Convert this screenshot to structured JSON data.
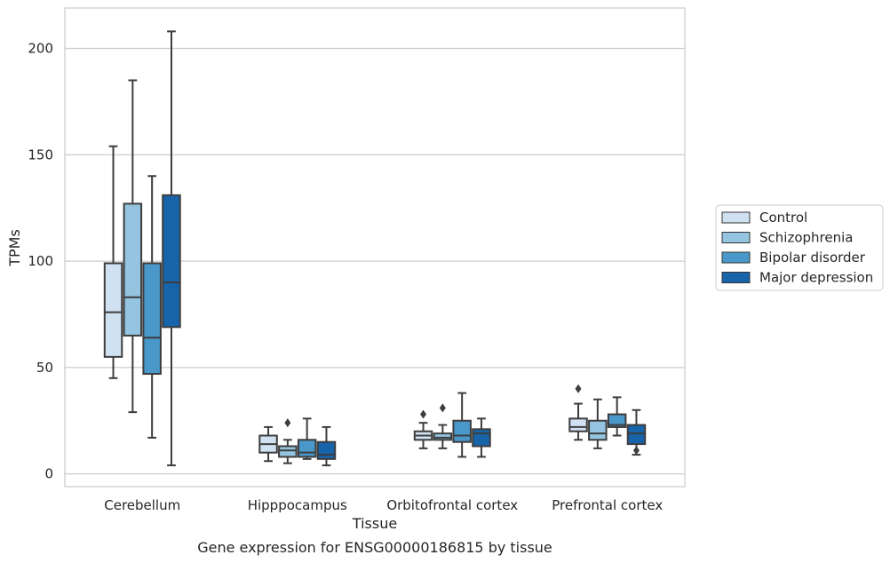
{
  "chart_data": {
    "type": "box",
    "caption": "Gene expression for ENSG00000186815 by tissue",
    "xlabel": "Tissue",
    "ylabel": "TPMs",
    "ylim": [
      -6,
      219
    ],
    "yticks": [
      0,
      50,
      100,
      150,
      200
    ],
    "grid": true,
    "legend_position": "right",
    "categories": [
      "Cerebellum",
      "Hipppocampus",
      "Orbitofrontal cortex",
      "Prefrontal cortex"
    ],
    "series": [
      {
        "name": "Control",
        "color": "#d0e1f2",
        "boxes": [
          {
            "whisker_low": 45,
            "q1": 55,
            "median": 76,
            "q3": 99,
            "whisker_high": 154,
            "outliers": []
          },
          {
            "whisker_low": 6,
            "q1": 10,
            "median": 14,
            "q3": 18,
            "whisker_high": 22,
            "outliers": []
          },
          {
            "whisker_low": 12,
            "q1": 16,
            "median": 18,
            "q3": 20,
            "whisker_high": 24,
            "outliers": [
              28
            ]
          },
          {
            "whisker_low": 16,
            "q1": 20,
            "median": 22,
            "q3": 26,
            "whisker_high": 33,
            "outliers": [
              40
            ]
          }
        ]
      },
      {
        "name": "Schizophrenia",
        "color": "#94c4df",
        "boxes": [
          {
            "whisker_low": 29,
            "q1": 65,
            "median": 83,
            "q3": 127,
            "whisker_high": 185,
            "outliers": []
          },
          {
            "whisker_low": 5,
            "q1": 8,
            "median": 11,
            "q3": 13,
            "whisker_high": 16,
            "outliers": [
              24
            ]
          },
          {
            "whisker_low": 12,
            "q1": 16,
            "median": 17,
            "q3": 19,
            "whisker_high": 23,
            "outliers": [
              31
            ]
          },
          {
            "whisker_low": 12,
            "q1": 16,
            "median": 19,
            "q3": 25,
            "whisker_high": 35,
            "outliers": []
          }
        ]
      },
      {
        "name": "Bipolar disorder",
        "color": "#4a98c9",
        "boxes": [
          {
            "whisker_low": 17,
            "q1": 47,
            "median": 64,
            "q3": 99,
            "whisker_high": 140,
            "outliers": []
          },
          {
            "whisker_low": 7,
            "q1": 8,
            "median": 10,
            "q3": 16,
            "whisker_high": 26,
            "outliers": []
          },
          {
            "whisker_low": 8,
            "q1": 15,
            "median": 18,
            "q3": 25,
            "whisker_high": 38,
            "outliers": []
          },
          {
            "whisker_low": 18,
            "q1": 22,
            "median": 23,
            "q3": 28,
            "whisker_high": 36,
            "outliers": []
          }
        ]
      },
      {
        "name": "Major depression",
        "color": "#1764ab",
        "boxes": [
          {
            "whisker_low": 4,
            "q1": 69,
            "median": 90,
            "q3": 131,
            "whisker_high": 208,
            "outliers": []
          },
          {
            "whisker_low": 4,
            "q1": 7,
            "median": 9,
            "q3": 15,
            "whisker_high": 22,
            "outliers": []
          },
          {
            "whisker_low": 8,
            "q1": 13,
            "median": 19,
            "q3": 21,
            "whisker_high": 26,
            "outliers": []
          },
          {
            "whisker_low": 9,
            "q1": 14,
            "median": 19,
            "q3": 23,
            "whisker_high": 30,
            "outliers": [
              11
            ]
          }
        ]
      }
    ]
  }
}
